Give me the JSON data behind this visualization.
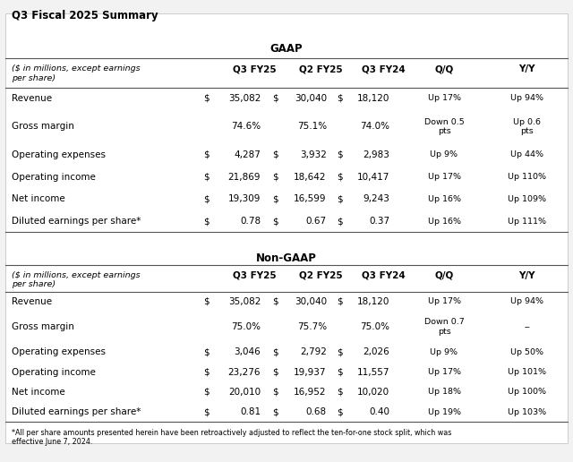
{
  "title": "Q3 Fiscal 2025 Summary",
  "bg_color": "#f2f2f2",
  "table_bg": "#ffffff",
  "footnote": "*All per share amounts presented herein have been retroactively adjusted to reflect the ten-for-one stock split, which was\neffective June 7, 2024.",
  "gaap": {
    "section_title": "GAAP",
    "header_label": "($ in millions, except earnings\nper share)",
    "columns": [
      "Q3 FY25",
      "Q2 FY25",
      "Q3 FY24",
      "Q/Q",
      "Y/Y"
    ],
    "rows": [
      {
        "label": "Revenue",
        "dollar": [
          true,
          true,
          true
        ],
        "values": [
          "35,082",
          "30,040",
          "18,120"
        ],
        "qoq": "Up 17%",
        "yoy": "Up 94%"
      },
      {
        "label": "Gross margin",
        "dollar": [
          false,
          false,
          false
        ],
        "values": [
          "74.6%",
          "75.1%",
          "74.0%"
        ],
        "qoq": "Down 0.5\npts",
        "yoy": "Up 0.6\npts"
      },
      {
        "label": "Operating expenses",
        "dollar": [
          true,
          true,
          true
        ],
        "values": [
          "4,287",
          "3,932",
          "2,983"
        ],
        "qoq": "Up 9%",
        "yoy": "Up 44%"
      },
      {
        "label": "Operating income",
        "dollar": [
          true,
          true,
          true
        ],
        "values": [
          "21,869",
          "18,642",
          "10,417"
        ],
        "qoq": "Up 17%",
        "yoy": "Up 110%"
      },
      {
        "label": "Net income",
        "dollar": [
          true,
          true,
          true
        ],
        "values": [
          "19,309",
          "16,599",
          "9,243"
        ],
        "qoq": "Up 16%",
        "yoy": "Up 109%"
      },
      {
        "label": "Diluted earnings per share*",
        "dollar": [
          true,
          true,
          true
        ],
        "values": [
          "0.78",
          "0.67",
          "0.37"
        ],
        "qoq": "Up 16%",
        "yoy": "Up 111%"
      }
    ]
  },
  "nongaap": {
    "section_title": "Non-GAAP",
    "header_label": "($ in millions, except earnings\nper share)",
    "columns": [
      "Q3 FY25",
      "Q2 FY25",
      "Q3 FY24",
      "Q/Q",
      "Y/Y"
    ],
    "rows": [
      {
        "label": "Revenue",
        "dollar": [
          true,
          true,
          true
        ],
        "values": [
          "35,082",
          "30,040",
          "18,120"
        ],
        "qoq": "Up 17%",
        "yoy": "Up 94%"
      },
      {
        "label": "Gross margin",
        "dollar": [
          false,
          false,
          false
        ],
        "values": [
          "75.0%",
          "75.7%",
          "75.0%"
        ],
        "qoq": "Down 0.7\npts",
        "yoy": "--"
      },
      {
        "label": "Operating expenses",
        "dollar": [
          true,
          true,
          true
        ],
        "values": [
          "3,046",
          "2,792",
          "2,026"
        ],
        "qoq": "Up 9%",
        "yoy": "Up 50%"
      },
      {
        "label": "Operating income",
        "dollar": [
          true,
          true,
          true
        ],
        "values": [
          "23,276",
          "19,937",
          "11,557"
        ],
        "qoq": "Up 17%",
        "yoy": "Up 101%"
      },
      {
        "label": "Net income",
        "dollar": [
          true,
          true,
          true
        ],
        "values": [
          "20,010",
          "16,952",
          "10,020"
        ],
        "qoq": "Up 18%",
        "yoy": "Up 100%"
      },
      {
        "label": "Diluted earnings per share*",
        "dollar": [
          true,
          true,
          true
        ],
        "values": [
          "0.81",
          "0.68",
          "0.40"
        ],
        "qoq": "Up 19%",
        "yoy": "Up 103%"
      }
    ]
  }
}
